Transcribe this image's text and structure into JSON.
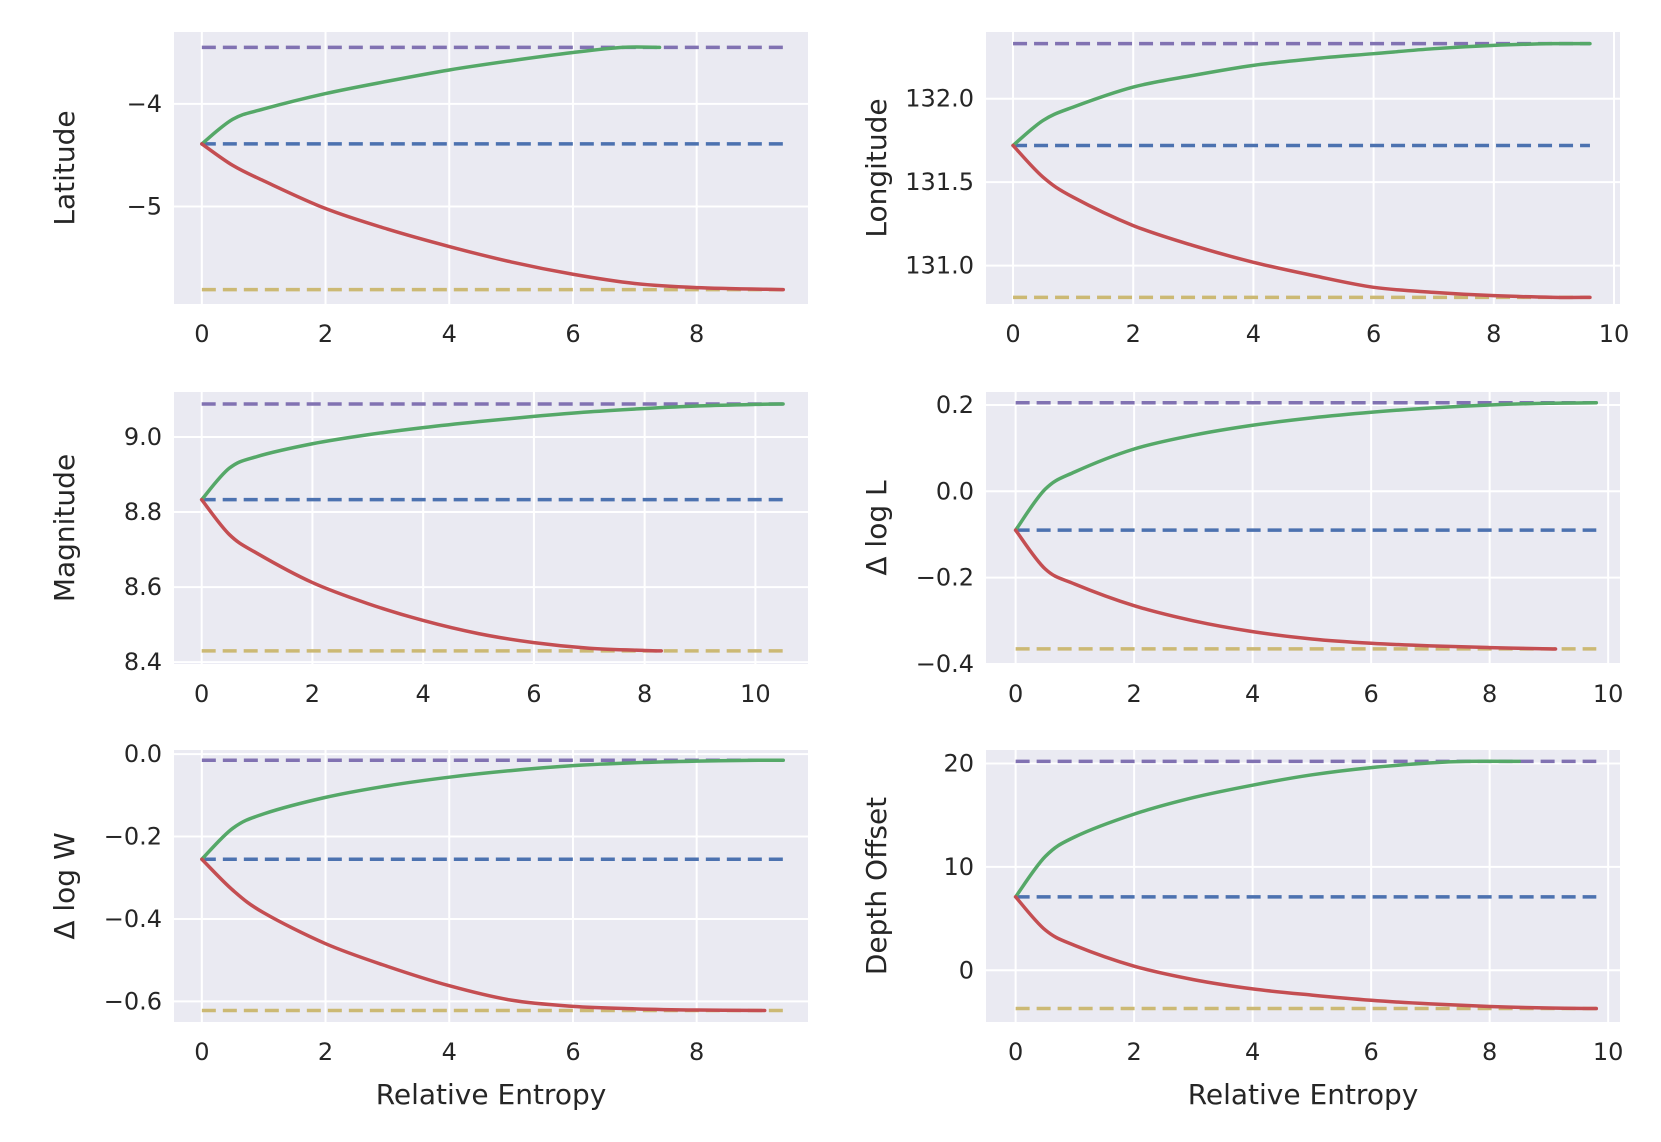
{
  "colors": {
    "background": "#eaeaf2",
    "grid": "#ffffff",
    "upper_bound": "#8172b2",
    "best_estimate": "#4c72b0",
    "lower_bound": "#ccb974",
    "upper_curve": "#55a868",
    "lower_curve": "#c44e52",
    "text": "#262626"
  },
  "chart_data": [
    {
      "type": "line",
      "xlabel": "",
      "ylabel": "Latitude",
      "xlim": [
        -0.45,
        9.8
      ],
      "ylim": [
        -5.95,
        -3.3
      ],
      "xticks": [
        0,
        2,
        4,
        6,
        8
      ],
      "xtick_labels": [
        "0",
        "2",
        "4",
        "6",
        "8"
      ],
      "yticks": [
        -4,
        -5
      ],
      "ytick_labels": [
        "−4",
        "−5"
      ],
      "reference_lines": [
        {
          "role": "upper",
          "y": -3.45,
          "x_range": [
            0,
            9.4
          ]
        },
        {
          "role": "best",
          "y": -4.39,
          "x_range": [
            0,
            9.4
          ]
        },
        {
          "role": "lower",
          "y": -5.81,
          "x_range": [
            0,
            9.4
          ]
        }
      ],
      "series": [
        {
          "role": "upper",
          "x": [
            0,
            0.5,
            1,
            2,
            3,
            4,
            5,
            6,
            6.8,
            7.4
          ],
          "y": [
            -4.39,
            -4.15,
            -4.05,
            -3.9,
            -3.78,
            -3.67,
            -3.58,
            -3.5,
            -3.45,
            -3.45
          ]
        },
        {
          "role": "lower",
          "x": [
            0,
            0.5,
            1,
            2,
            3,
            4,
            5,
            6,
            7,
            8,
            9.4
          ],
          "y": [
            -4.39,
            -4.6,
            -4.75,
            -5.02,
            -5.22,
            -5.39,
            -5.54,
            -5.66,
            -5.75,
            -5.79,
            -5.81
          ]
        }
      ]
    },
    {
      "type": "line",
      "xlabel": "",
      "ylabel": "Longitude",
      "xlim": [
        -0.45,
        10.1
      ],
      "ylim": [
        130.77,
        132.4
      ],
      "xticks": [
        0,
        2,
        4,
        6,
        8,
        10
      ],
      "xtick_labels": [
        "0",
        "2",
        "4",
        "6",
        "8",
        "10"
      ],
      "yticks": [
        132.0,
        131.5,
        131.0
      ],
      "ytick_labels": [
        "132.0",
        "131.5",
        "131.0"
      ],
      "reference_lines": [
        {
          "role": "upper",
          "y": 132.33,
          "x_range": [
            0,
            9.6
          ]
        },
        {
          "role": "best",
          "y": 131.72,
          "x_range": [
            0,
            9.6
          ]
        },
        {
          "role": "lower",
          "y": 130.81,
          "x_range": [
            0,
            9.6
          ]
        }
      ],
      "series": [
        {
          "role": "upper",
          "x": [
            0,
            0.5,
            1,
            2,
            3,
            4,
            5,
            6,
            7,
            8,
            9,
            9.6
          ],
          "y": [
            131.72,
            131.87,
            131.95,
            132.07,
            132.14,
            132.2,
            132.24,
            132.27,
            132.3,
            132.32,
            132.33,
            132.33
          ]
        },
        {
          "role": "lower",
          "x": [
            0,
            0.5,
            1,
            2,
            3,
            4,
            5,
            6,
            7,
            8,
            9,
            9.6
          ],
          "y": [
            131.72,
            131.53,
            131.41,
            131.24,
            131.12,
            131.02,
            130.94,
            130.87,
            130.84,
            130.82,
            130.81,
            130.81
          ]
        }
      ]
    },
    {
      "type": "line",
      "xlabel": "",
      "ylabel": "Magnitude",
      "xlim": [
        -0.5,
        10.95
      ],
      "ylim": [
        8.395,
        9.12
      ],
      "xticks": [
        0,
        2,
        4,
        6,
        8,
        10
      ],
      "xtick_labels": [
        "0",
        "2",
        "4",
        "6",
        "8",
        "10"
      ],
      "yticks": [
        9.0,
        8.8,
        8.6,
        8.4
      ],
      "ytick_labels": [
        "9.0",
        "8.8",
        "8.6",
        "8.4"
      ],
      "reference_lines": [
        {
          "role": "upper",
          "y": 9.088,
          "x_range": [
            0,
            10.5
          ]
        },
        {
          "role": "best",
          "y": 8.833,
          "x_range": [
            0,
            10.5
          ]
        },
        {
          "role": "lower",
          "y": 8.43,
          "x_range": [
            0,
            10.5
          ]
        }
      ],
      "series": [
        {
          "role": "upper",
          "x": [
            0,
            0.5,
            1,
            2,
            3,
            4,
            5,
            6,
            7,
            8,
            9,
            10,
            10.5
          ],
          "y": [
            8.833,
            8.917,
            8.948,
            8.982,
            9.006,
            9.025,
            9.041,
            9.055,
            9.067,
            9.076,
            9.083,
            9.087,
            9.088
          ]
        },
        {
          "role": "lower",
          "x": [
            0,
            0.5,
            1,
            2,
            3,
            4,
            5,
            6,
            7,
            8,
            8.3
          ],
          "y": [
            8.833,
            8.74,
            8.69,
            8.612,
            8.556,
            8.511,
            8.476,
            8.452,
            8.437,
            8.431,
            8.43
          ]
        }
      ]
    },
    {
      "type": "line",
      "xlabel": "",
      "ylabel": "Δ log L",
      "xlim": [
        -0.5,
        10.2
      ],
      "ylim": [
        -0.4,
        0.23
      ],
      "xticks": [
        0,
        2,
        4,
        6,
        8,
        10
      ],
      "xtick_labels": [
        "0",
        "2",
        "4",
        "6",
        "8",
        "10"
      ],
      "yticks": [
        0.2,
        0.0,
        -0.2,
        -0.4
      ],
      "ytick_labels": [
        "0.2",
        "0.0",
        "−0.2",
        "−0.4"
      ],
      "reference_lines": [
        {
          "role": "upper",
          "y": 0.205,
          "x_range": [
            0,
            9.8
          ]
        },
        {
          "role": "best",
          "y": -0.09,
          "x_range": [
            0,
            9.8
          ]
        },
        {
          "role": "lower",
          "y": -0.365,
          "x_range": [
            0,
            9.8
          ]
        }
      ],
      "series": [
        {
          "role": "upper",
          "x": [
            0,
            0.5,
            1,
            2,
            3,
            4,
            5,
            6,
            7,
            8,
            9,
            9.8
          ],
          "y": [
            -0.09,
            0.005,
            0.045,
            0.098,
            0.13,
            0.153,
            0.17,
            0.183,
            0.193,
            0.2,
            0.204,
            0.205
          ]
        },
        {
          "role": "lower",
          "x": [
            0,
            0.5,
            1,
            2,
            3,
            4,
            5,
            6,
            7,
            8,
            9,
            9.1
          ],
          "y": [
            -0.09,
            -0.18,
            -0.215,
            -0.265,
            -0.3,
            -0.325,
            -0.342,
            -0.352,
            -0.358,
            -0.362,
            -0.365,
            -0.365
          ]
        }
      ]
    },
    {
      "type": "line",
      "xlabel": "Relative Entropy",
      "ylabel": "Δ log W",
      "xlim": [
        -0.45,
        9.8
      ],
      "ylim": [
        -0.65,
        0.01
      ],
      "xticks": [
        0,
        2,
        4,
        6,
        8
      ],
      "xtick_labels": [
        "0",
        "2",
        "4",
        "6",
        "8"
      ],
      "yticks": [
        0.0,
        -0.2,
        -0.4,
        -0.6
      ],
      "ytick_labels": [
        "0.0",
        "−0.2",
        "−0.4",
        "−0.6"
      ],
      "reference_lines": [
        {
          "role": "upper",
          "y": -0.015,
          "x_range": [
            0,
            9.4
          ]
        },
        {
          "role": "best",
          "y": -0.255,
          "x_range": [
            0,
            9.4
          ]
        },
        {
          "role": "lower",
          "y": -0.622,
          "x_range": [
            0,
            9.4
          ]
        }
      ],
      "series": [
        {
          "role": "upper",
          "x": [
            0,
            0.5,
            1,
            2,
            3,
            4,
            5,
            6,
            7,
            8,
            9,
            9.4
          ],
          "y": [
            -0.255,
            -0.18,
            -0.145,
            -0.105,
            -0.077,
            -0.056,
            -0.04,
            -0.028,
            -0.021,
            -0.017,
            -0.015,
            -0.015
          ]
        },
        {
          "role": "lower",
          "x": [
            0,
            0.5,
            1,
            2,
            3,
            4,
            5,
            6,
            7,
            8,
            9.1
          ],
          "y": [
            -0.255,
            -0.33,
            -0.385,
            -0.46,
            -0.515,
            -0.562,
            -0.597,
            -0.612,
            -0.618,
            -0.621,
            -0.622
          ]
        }
      ]
    },
    {
      "type": "line",
      "xlabel": "Relative Entropy",
      "ylabel": "Depth Offset",
      "xlim": [
        -0.5,
        10.2
      ],
      "ylim": [
        -5.0,
        21.3
      ],
      "xticks": [
        0,
        2,
        4,
        6,
        8,
        10
      ],
      "xtick_labels": [
        "0",
        "2",
        "4",
        "6",
        "8",
        "10"
      ],
      "yticks": [
        20,
        10,
        0
      ],
      "ytick_labels": [
        "20",
        "10",
        "0"
      ],
      "reference_lines": [
        {
          "role": "upper",
          "y": 20.2,
          "x_range": [
            0,
            9.8
          ]
        },
        {
          "role": "best",
          "y": 7.1,
          "x_range": [
            0,
            9.8
          ]
        },
        {
          "role": "lower",
          "y": -3.7,
          "x_range": [
            0,
            9.8
          ]
        }
      ],
      "series": [
        {
          "role": "upper",
          "x": [
            0,
            0.5,
            1,
            2,
            3,
            4,
            5,
            6,
            7,
            7.6,
            8.5
          ],
          "y": [
            7.1,
            11.0,
            12.9,
            15.1,
            16.7,
            17.9,
            18.9,
            19.6,
            20.05,
            20.2,
            20.2
          ]
        },
        {
          "role": "lower",
          "x": [
            0,
            0.5,
            1,
            2,
            3,
            4,
            5,
            6,
            7,
            8,
            9,
            9.8
          ],
          "y": [
            7.1,
            3.9,
            2.4,
            0.4,
            -0.9,
            -1.8,
            -2.4,
            -2.9,
            -3.25,
            -3.5,
            -3.65,
            -3.7
          ]
        }
      ]
    }
  ]
}
